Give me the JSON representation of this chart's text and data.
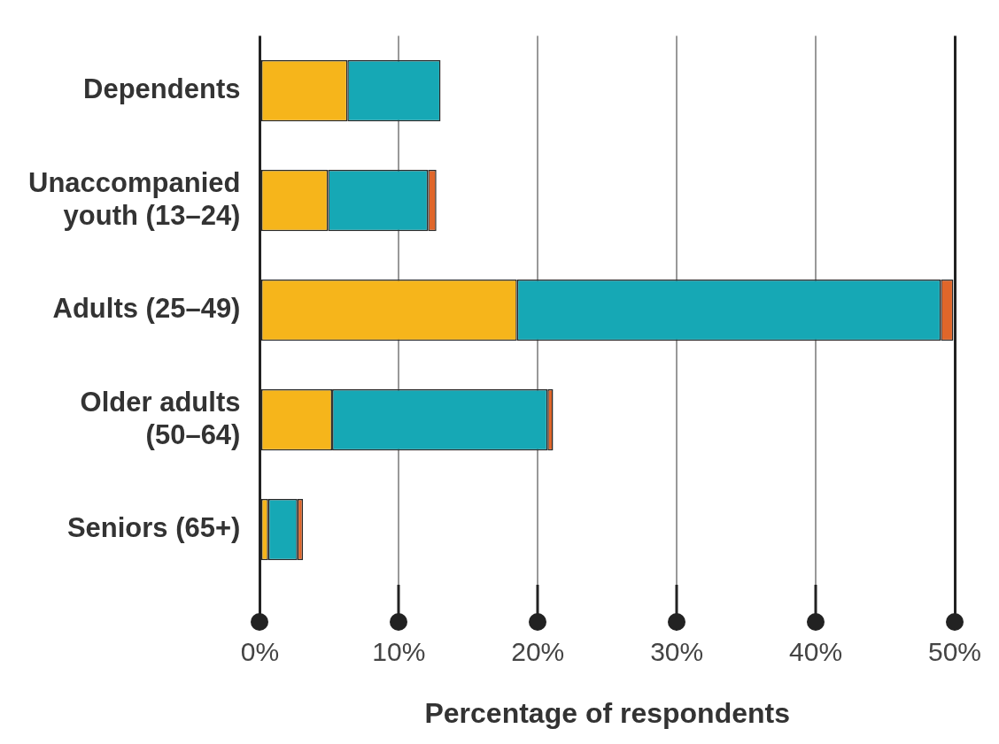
{
  "chart_data": {
    "type": "bar",
    "orientation": "horizontal",
    "stacked": true,
    "xlabel": "Percentage of respondents",
    "categories": [
      "Dependents",
      "Unaccompanied youth (13–24)",
      "Adults (25–49)",
      "Older adults (50–64)",
      "Seniors (65+)"
    ],
    "series": [
      {
        "color": "#f6b51b",
        "values": [
          6.3,
          4.9,
          18.5,
          5.2,
          0.6
        ]
      },
      {
        "color": "#16a8b5",
        "values": [
          6.7,
          7.2,
          30.5,
          15.5,
          2.1
        ]
      },
      {
        "color": "#e0662a",
        "values": [
          null,
          0.6,
          0.9,
          0.4,
          0.4
        ]
      }
    ],
    "xlim": [
      0,
      50
    ],
    "xticks": [
      {
        "value": 0,
        "label": "0%"
      },
      {
        "value": 10,
        "label": "10%"
      },
      {
        "value": 20,
        "label": "20%"
      },
      {
        "value": 30,
        "label": "30%"
      },
      {
        "value": 40,
        "label": "40%"
      },
      {
        "value": 50,
        "label": "50%"
      }
    ],
    "grid": "x",
    "legend": false
  }
}
